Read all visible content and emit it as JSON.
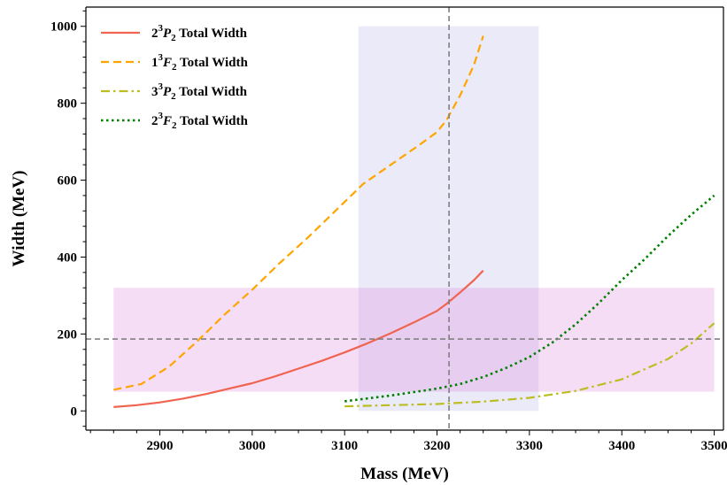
{
  "chart_data": {
    "type": "line",
    "xlabel": "Mass (MeV)",
    "ylabel": "Width (MeV)",
    "xlim": [
      2820,
      3510
    ],
    "ylim": [
      -50,
      1050
    ],
    "xticks": [
      2900,
      3000,
      3100,
      3200,
      3300,
      3400,
      3500
    ],
    "yticks": [
      0,
      200,
      400,
      600,
      800,
      1000
    ],
    "grid": false,
    "legend_position": "top-left",
    "series": [
      {
        "name_main": "2",
        "name_sup": "3",
        "name_letter": "P",
        "name_sub": "2",
        "name_rest": " Total Width",
        "color": "#f06450",
        "style": "solid",
        "x": [
          2850,
          2875,
          2900,
          2925,
          2950,
          2975,
          3000,
          3025,
          3050,
          3075,
          3100,
          3125,
          3150,
          3175,
          3200,
          3210,
          3225,
          3240,
          3250
        ],
        "y": [
          10,
          15,
          22,
          32,
          44,
          58,
          72,
          90,
          110,
          130,
          152,
          176,
          202,
          230,
          260,
          278,
          308,
          340,
          365
        ]
      },
      {
        "name_main": "1",
        "name_sup": "3",
        "name_letter": "F",
        "name_sub": "2",
        "name_rest": " Total Width",
        "color": "#ffa500",
        "style": "dashed",
        "x": [
          2850,
          2880,
          2910,
          2940,
          2970,
          3000,
          3030,
          3060,
          3090,
          3120,
          3150,
          3180,
          3200,
          3210,
          3225,
          3240,
          3250
        ],
        "y": [
          55,
          70,
          115,
          180,
          250,
          315,
          385,
          450,
          520,
          590,
          640,
          690,
          725,
          755,
          820,
          900,
          975
        ]
      },
      {
        "name_main": "3",
        "name_sup": "3",
        "name_letter": "P",
        "name_sub": "2",
        "name_rest": " Total Width",
        "color": "#bcbd22",
        "style": "dashdot",
        "x": [
          3100,
          3150,
          3200,
          3250,
          3300,
          3350,
          3400,
          3450,
          3475,
          3500
        ],
        "y": [
          12,
          15,
          18,
          24,
          34,
          52,
          82,
          135,
          175,
          228
        ]
      },
      {
        "name_main": "2",
        "name_sup": "3",
        "name_letter": "F",
        "name_sub": "2",
        "name_rest": " Total Width",
        "color": "#008000",
        "style": "dotted",
        "x": [
          3100,
          3150,
          3200,
          3225,
          3250,
          3275,
          3300,
          3325,
          3350,
          3375,
          3400,
          3425,
          3450,
          3475,
          3500
        ],
        "y": [
          25,
          40,
          58,
          70,
          88,
          112,
          140,
          178,
          225,
          280,
          340,
          395,
          455,
          510,
          560
        ]
      }
    ],
    "bands": [
      {
        "name": "mass-band",
        "orientation": "vertical",
        "x_range": [
          3115,
          3310
        ],
        "y_range": [
          0,
          1000
        ],
        "color": "#b8b8e8",
        "opacity": 0.3
      },
      {
        "name": "width-band",
        "orientation": "horizontal",
        "x_range": [
          2850,
          3500
        ],
        "y_range": [
          50,
          320
        ],
        "color": "#e090e0",
        "opacity": 0.3
      }
    ],
    "reference_lines": [
      {
        "name": "vertical-ref-line",
        "orientation": "vertical",
        "value": 3213,
        "color": "#808080",
        "style": "dashed"
      },
      {
        "name": "horizontal-ref-line",
        "orientation": "horizontal",
        "value": 187,
        "color": "#808080",
        "style": "dashed"
      }
    ]
  }
}
